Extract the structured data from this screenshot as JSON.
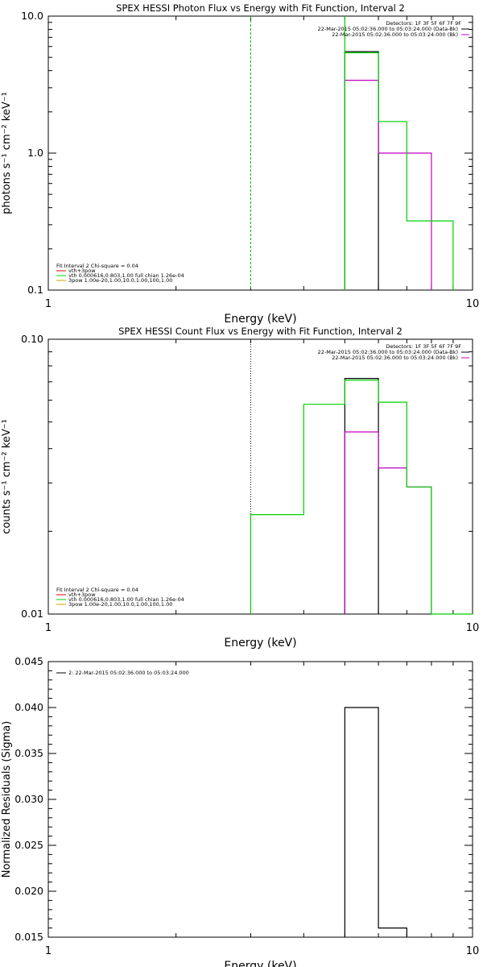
{
  "chart_data": [
    {
      "type": "line",
      "title": "SPEX HESSI Photon Flux vs Energy with Fit Function, Interval 2",
      "xlabel": "Energy (keV)",
      "ylabel": "photons s⁻¹ cm⁻² keV⁻¹",
      "xscale": "log",
      "yscale": "log",
      "xlim": [
        1,
        10
      ],
      "ylim": [
        0.1,
        10
      ],
      "x_tick_labels": [
        {
          "value": 1,
          "label": "1"
        },
        {
          "value": 10,
          "label": "10"
        }
      ],
      "y_tick_labels": [
        {
          "value": 0.1,
          "label": "0.1"
        },
        {
          "value": 1,
          "label": "1.0"
        },
        {
          "value": 10,
          "label": "10.0"
        }
      ],
      "vline": {
        "x": 3,
        "color": "#00b000",
        "style": "dashed"
      },
      "legend_right": {
        "placement": "top-right",
        "header": "Detectors: 1F 3F 5F 6F 7F 9F",
        "entries": [
          {
            "label": "22-Mar-2015 05:02:36.000 to 05:03:24.000 (Data-Bk)",
            "color": "#000000"
          },
          {
            "label": "22-Mar-2015 05:02:36.000 to 05:03:24.000 (Bk)",
            "color": "#c000c0"
          }
        ]
      },
      "legend_left": {
        "placement": "bottom-left",
        "header": "Fit Interval 2   Chi-square = 0.04",
        "entries": [
          {
            "label": "vth+3pow",
            "color": "#e00000"
          },
          {
            "label": "vth 0.000616,0.803,1.00  full chian 1.26e-04",
            "color": "#00d000"
          },
          {
            "label": "3pow 1.00e-20,1.00,10.0,1.00,100,1.00",
            "color": "#d0a000"
          }
        ]
      },
      "series": [
        {
          "color": "#000000",
          "edges": [
            5,
            6
          ],
          "values": [
            5.5
          ]
        },
        {
          "color": "#c000c0",
          "edges": [
            5,
            6,
            7,
            8
          ],
          "values": [
            3.4,
            1.0,
            1.0
          ]
        },
        {
          "color": "#00d000",
          "edges": [
            5,
            6,
            7,
            8,
            9
          ],
          "values": [
            5.4,
            1.7,
            0.32,
            0.32
          ]
        }
      ],
      "green_vline_top": {
        "x": 5,
        "ytop": 10
      }
    },
    {
      "type": "line",
      "title": "SPEX HESSI Count Flux vs Energy with Fit Function, Interval 2",
      "xlabel": "Energy (keV)",
      "ylabel": "counts s⁻¹ cm⁻² keV⁻¹",
      "xscale": "log",
      "yscale": "log",
      "xlim": [
        1,
        10
      ],
      "ylim": [
        0.01,
        0.1
      ],
      "x_tick_labels": [
        {
          "value": 1,
          "label": "1"
        },
        {
          "value": 10,
          "label": "10"
        }
      ],
      "y_tick_labels": [
        {
          "value": 0.01,
          "label": "0.01"
        },
        {
          "value": 0.1,
          "label": "0.10"
        }
      ],
      "vline": {
        "x": 3,
        "color": "#000000",
        "style": "dotted"
      },
      "legend_right": {
        "placement": "top-right",
        "header": "Detectors: 1F 3F 5F 6F 7F 9F",
        "entries": [
          {
            "label": "22-Mar-2015 05:02:36.000 to 05:03:24.000 (Data-Bk)",
            "color": "#000000"
          },
          {
            "label": "22-Mar-2015 05:02:36.000 to 05:03:24.000 (Bk)",
            "color": "#c000c0"
          }
        ]
      },
      "legend_left": {
        "placement": "bottom-left",
        "header": "Fit Interval 2   Chi-square = 0.04",
        "entries": [
          {
            "label": "vth+3pow",
            "color": "#e00000"
          },
          {
            "label": "vth 0.000616,0.803,1.00  full chian 1.26e-04",
            "color": "#00d000"
          },
          {
            "label": "3pow 1.00e-20,1.00,10.0,1.00,100,1.00",
            "color": "#d0a000"
          }
        ]
      },
      "series": [
        {
          "color": "#000000",
          "edges": [
            5,
            6
          ],
          "values": [
            0.072
          ]
        },
        {
          "color": "#c000c0",
          "edges": [
            5,
            6,
            7,
            8
          ],
          "values": [
            0.046,
            0.034,
            0.029
          ]
        },
        {
          "color": "#00d000",
          "edges": [
            3,
            4,
            5,
            6,
            7,
            8,
            9,
            10
          ],
          "values": [
            0.023,
            0.058,
            0.071,
            0.059,
            0.029,
            0.01,
            0.01
          ]
        }
      ]
    },
    {
      "type": "line",
      "title": "",
      "xlabel": "Energy (keV)",
      "ylabel": "Normalized Residuals (Sigma)",
      "xscale": "log",
      "yscale": "linear",
      "xlim": [
        1,
        10
      ],
      "ylim": [
        0.015,
        0.045
      ],
      "x_tick_labels": [
        {
          "value": 1,
          "label": "1"
        },
        {
          "value": 10,
          "label": "10"
        }
      ],
      "y_tick_labels": [
        {
          "value": 0.015,
          "label": "0.015"
        },
        {
          "value": 0.02,
          "label": "0.020"
        },
        {
          "value": 0.025,
          "label": "0.025"
        },
        {
          "value": 0.03,
          "label": "0.030"
        },
        {
          "value": 0.035,
          "label": "0.035"
        },
        {
          "value": 0.04,
          "label": "0.040"
        },
        {
          "value": 0.045,
          "label": "0.045"
        }
      ],
      "legend_right": null,
      "legend_left": {
        "placement": "top-left",
        "header": "",
        "entries": [
          {
            "label": "2: 22-Mar-2015 05:02:36.000 to 05:03:24.000",
            "color": "#000000"
          }
        ]
      },
      "series": [
        {
          "color": "#000000",
          "edges": [
            5,
            6,
            7
          ],
          "values": [
            0.04,
            0.016
          ]
        }
      ]
    }
  ]
}
